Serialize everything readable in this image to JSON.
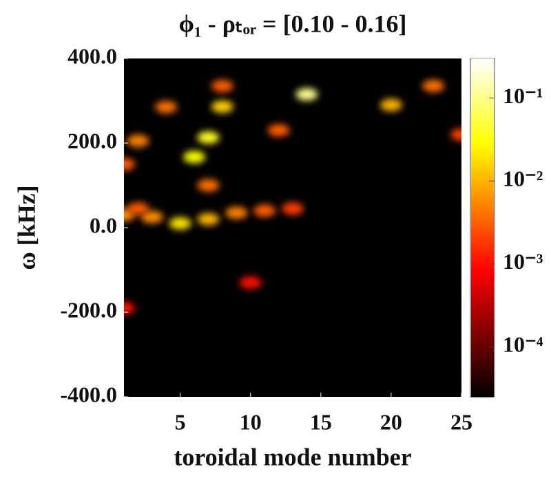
{
  "chart_data": {
    "type": "heatmap",
    "title": "ϕ₁ - ρₜₒᵣ = [0.10 - 0.16]",
    "xlabel": "toroidal mode number",
    "ylabel": "ω [kHz]",
    "xlim": [
      1,
      25
    ],
    "xticks": [
      5,
      10,
      15,
      20,
      25
    ],
    "ylim": [
      -400,
      400
    ],
    "yticks": [
      {
        "value": -400,
        "label": "-400.0"
      },
      {
        "value": -200,
        "label": "-200.0"
      },
      {
        "value": 0,
        "label": "0.0"
      },
      {
        "value": 200,
        "label": "200.0"
      },
      {
        "value": 400,
        "label": "400.0"
      }
    ],
    "x": [
      14,
      7,
      6,
      8,
      20,
      23,
      5,
      7,
      2,
      1,
      12,
      4,
      1,
      1,
      10,
      25,
      7,
      3,
      9,
      11,
      13,
      8,
      2
    ],
    "y": [
      315,
      213,
      167,
      286,
      290,
      335,
      10,
      20,
      205,
      150,
      230,
      285,
      30,
      -190,
      -130,
      220,
      100,
      25,
      35,
      40,
      45,
      335,
      45
    ],
    "values": [
      0.1,
      0.04,
      0.03,
      0.015,
      0.01,
      0.004,
      0.02,
      0.01,
      0.005,
      0.003,
      0.003,
      0.004,
      0.006,
      0.001,
      0.001,
      0.002,
      0.004,
      0.006,
      0.005,
      0.003,
      0.002,
      0.003,
      0.003
    ],
    "colorbar": {
      "log": true,
      "colormap": "hot",
      "lim": [
        2.5e-05,
        0.3
      ],
      "ticks": [
        {
          "value": 0.0001,
          "label": "10⁻⁴"
        },
        {
          "value": 0.001,
          "label": "10⁻³"
        },
        {
          "value": 0.01,
          "label": "10⁻²"
        },
        {
          "value": 0.1,
          "label": "10⁻¹"
        }
      ]
    }
  }
}
